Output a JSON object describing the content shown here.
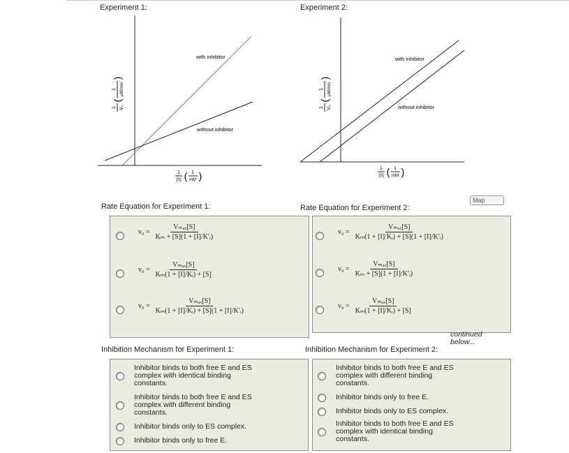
{
  "graphs": [
    {
      "title": "Experiment 1:",
      "with_label": "with inhibitor",
      "without_label": "without inhibitor",
      "y_axis": {
        "num": "1",
        "den": "V₀",
        "unit_num": "1",
        "unit_den": "μM/min"
      },
      "x_axis": {
        "num": "1",
        "den": "[S]",
        "unit_num": "1",
        "unit_den": "mM"
      }
    },
    {
      "title": "Experiment 2:",
      "with_label": "with inhibitor",
      "without_label": "without inhibitor",
      "y_axis": {
        "num": "1",
        "den": "V₀",
        "unit_num": "1",
        "unit_den": "μM/min"
      },
      "x_axis": {
        "num": "1",
        "den": "[S]",
        "unit_num": "1",
        "unit_den": "mM"
      }
    }
  ],
  "map_button": "Map",
  "rate_equations": [
    {
      "title": "Rate Equation for Experiment 1:",
      "options": [
        {
          "lhs": "v₀ =",
          "numerator": "Vₘₐₓ[S]",
          "denominator": "Kₘ + [S](1 + [I]/K′ᵢ)"
        },
        {
          "lhs": "v₀ =",
          "numerator": "Vₘₐₓ[S]",
          "denominator": "Kₘ(1 + [I]/Kᵢ) + [S]"
        },
        {
          "lhs": "v₀ =",
          "numerator": "Vₘₐₓ[S]",
          "denominator": "Kₘ(1 + [I]/Kᵢ) + [S](1 + [I]/K′ᵢ)"
        }
      ]
    },
    {
      "title": "Rate Equation for Experiment 2:",
      "options": [
        {
          "lhs": "v₀ =",
          "numerator": "Vₘₐₓ[S]",
          "denominator": "Kₘ(1 + [I]/Kᵢ) + [S](1 + [I]/K′ᵢ)"
        },
        {
          "lhs": "v₀ =",
          "numerator": "Vₘₐₓ[S]",
          "denominator": "Kₘ + [S](1 + [I]/K′ᵢ)"
        },
        {
          "lhs": "v₀ =",
          "numerator": "Vₘₐₓ[S]",
          "denominator": "Kₘ(1 + [I]/Kᵢ) + [S]"
        }
      ]
    }
  ],
  "note": "continued below...",
  "mechanisms": [
    {
      "title": "Inhibition Mechanism for Experiment 1:",
      "options": [
        "Inhibitor binds to both free E and ES complex with identical binding constants.",
        "Inhibitor binds to both free E and ES complex with different binding constants.",
        "Inhibitor binds only to ES complex.",
        "Inhibitor binds only to free E."
      ]
    },
    {
      "title": "Inhibition Mechanism for Experiment 2:",
      "options": [
        "Inhibitor binds to both free E and ES complex with different binding constants.",
        "Inhibitor binds only to free E.",
        "Inhibitor binds only to ES complex.",
        "Inhibitor binds to both free E and ES complex with identical binding constants."
      ]
    }
  ]
}
